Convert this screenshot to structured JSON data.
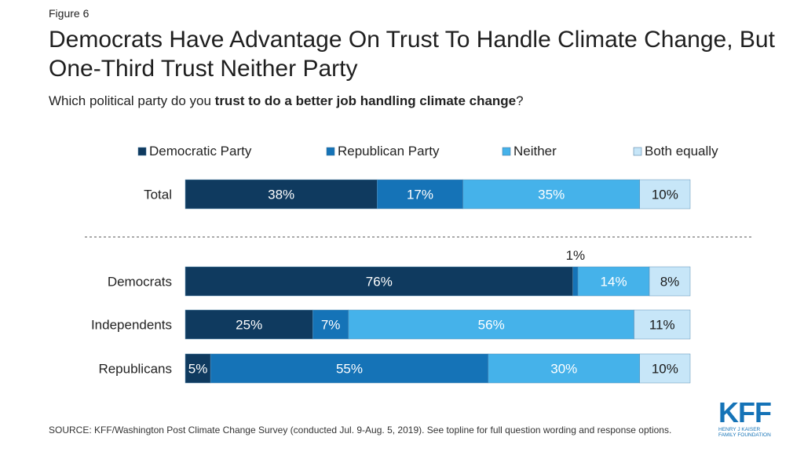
{
  "figure_label": "Figure 6",
  "title": "Democrats Have Advantage On Trust To Handle Climate Change, But One-Third Trust Neither Party",
  "subtitle": {
    "prefix": "Which political party do you ",
    "bold": "trust to do a better job handling climate change",
    "suffix": "?"
  },
  "source": "SOURCE: KFF/Washington Post Climate Change Survey (conducted Jul. 9-Aug. 5, 2019). See topline for full question wording and response options.",
  "logo": {
    "letters": "KFF",
    "subtitle": "HENRY J KAISER\nFAMILY FOUNDATION"
  },
  "chart_data": {
    "type": "bar",
    "orientation": "horizontal",
    "stacked": true,
    "categories": [
      "Total",
      "Democrats",
      "Independents",
      "Republicans"
    ],
    "series": [
      {
        "name": "Democratic Party",
        "values": [
          38,
          76,
          25,
          5
        ],
        "color": "#0f3a5f"
      },
      {
        "name": "Republican Party",
        "values": [
          17,
          1,
          7,
          55
        ],
        "color": "#1573b7"
      },
      {
        "name": "Neither",
        "values": [
          35,
          14,
          56,
          30
        ],
        "color": "#45b2ea"
      },
      {
        "name": "Both equally",
        "values": [
          10,
          8,
          11,
          10
        ],
        "color": "#c7e6f8"
      }
    ],
    "legend_position": "top",
    "grid": false,
    "separator_after_category": "Total",
    "label_suffix": "%"
  }
}
